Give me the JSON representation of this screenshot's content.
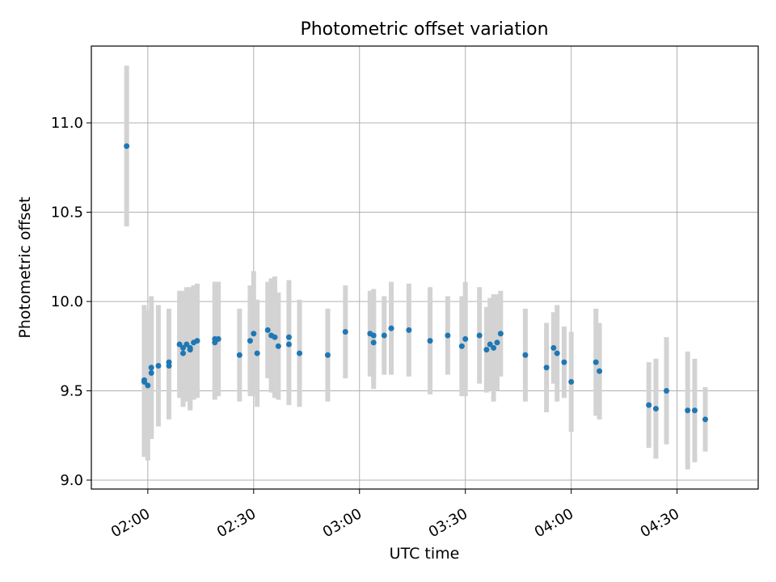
{
  "chart_data": {
    "type": "scatter",
    "title": "Photometric offset variation",
    "xlabel": "UTC time",
    "ylabel": "Photometric offset",
    "x_tick_labels": [
      "02:00",
      "02:30",
      "03:00",
      "03:30",
      "04:00",
      "04:30"
    ],
    "y_tick_labels": [
      "9.0",
      "9.5",
      "10.0",
      "10.5",
      "11.0"
    ],
    "xlim": [
      "01:44",
      "04:53"
    ],
    "ylim": [
      8.95,
      11.43
    ],
    "grid": true,
    "colors": {
      "point": "#1f77b4",
      "errorbar": "#d3d3d3",
      "grid": "#b0b0b0"
    },
    "series": [
      {
        "x": [
          "01:54",
          "01:59",
          "01:59",
          "02:00",
          "02:01",
          "02:01",
          "02:03",
          "02:06",
          "02:06",
          "02:09",
          "02:10",
          "02:10",
          "02:11",
          "02:12",
          "02:12",
          "02:13",
          "02:14",
          "02:19",
          "02:19",
          "02:20",
          "02:26",
          "02:29",
          "02:30",
          "02:31",
          "02:34",
          "02:35",
          "02:36",
          "02:37",
          "02:40",
          "02:40",
          "02:43",
          "02:51",
          "02:56",
          "03:03",
          "03:04",
          "03:04",
          "03:07",
          "03:09",
          "03:14",
          "03:20",
          "03:25",
          "03:29",
          "03:30",
          "03:34",
          "03:36",
          "03:37",
          "03:38",
          "03:39",
          "03:40",
          "03:47",
          "03:53",
          "03:55",
          "03:56",
          "03:58",
          "04:00",
          "04:07",
          "04:08",
          "04:22",
          "04:24",
          "04:27",
          "04:33",
          "04:35",
          "04:38"
        ],
        "y": [
          10.87,
          9.55,
          9.56,
          9.53,
          9.63,
          9.6,
          9.64,
          9.64,
          9.66,
          9.76,
          9.71,
          9.74,
          9.76,
          9.73,
          9.74,
          9.77,
          9.78,
          9.77,
          9.79,
          9.79,
          9.7,
          9.78,
          9.82,
          9.71,
          9.84,
          9.81,
          9.8,
          9.75,
          9.8,
          9.76,
          9.71,
          9.7,
          9.83,
          9.82,
          9.77,
          9.81,
          9.81,
          9.85,
          9.84,
          9.78,
          9.81,
          9.75,
          9.79,
          9.81,
          9.73,
          9.76,
          9.74,
          9.77,
          9.82,
          9.7,
          9.63,
          9.74,
          9.71,
          9.66,
          9.55,
          9.66,
          9.61,
          9.42,
          9.4,
          9.5,
          9.39,
          9.39,
          9.34
        ],
        "err": [
          0.45,
          0.42,
          0.42,
          0.42,
          0.4,
          0.36,
          0.34,
          0.3,
          0.3,
          0.3,
          0.3,
          0.32,
          0.32,
          0.34,
          0.34,
          0.32,
          0.32,
          0.32,
          0.32,
          0.32,
          0.26,
          0.31,
          0.35,
          0.3,
          0.27,
          0.32,
          0.34,
          0.3,
          0.32,
          0.34,
          0.3,
          0.26,
          0.26,
          0.24,
          0.26,
          0.26,
          0.22,
          0.26,
          0.26,
          0.3,
          0.22,
          0.28,
          0.32,
          0.27,
          0.24,
          0.26,
          0.3,
          0.27,
          0.24,
          0.26,
          0.25,
          0.2,
          0.27,
          0.2,
          0.28,
          0.3,
          0.27,
          0.24,
          0.28,
          0.3,
          0.33,
          0.29,
          0.18
        ]
      }
    ]
  }
}
